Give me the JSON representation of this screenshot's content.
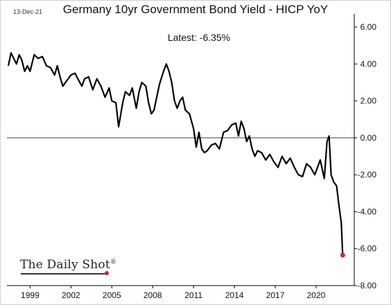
{
  "date_stamp": "13-Dec-21",
  "brand": {
    "name": "The Daily Shot",
    "mark": "®",
    "accent": "#e0232c"
  },
  "chart_data": {
    "type": "line",
    "title": "Germany 10yr Government Bond Yield - HICP YoY",
    "annotation": "Latest:  -6.35%",
    "xlabel": "",
    "ylabel": "",
    "xlim": [
      1997.3,
      2022.8
    ],
    "ylim": [
      -8,
      6
    ],
    "y_ticks": [
      6,
      4,
      2,
      0,
      -2,
      -4,
      -6,
      -8
    ],
    "y_tick_labels": [
      "6.00",
      "4.00",
      "2.00",
      "0.00",
      "-2.00",
      "-4.00",
      "-6.00",
      "-8.00"
    ],
    "x_ticks": [
      1999,
      2002,
      2005,
      2008,
      2011,
      2014,
      2017,
      2020
    ],
    "x_tick_labels": [
      "1999",
      "2002",
      "2005",
      "2008",
      "2011",
      "2014",
      "2017",
      "2020"
    ],
    "y_axis_side": "right",
    "zero_line": true,
    "grid": false,
    "line_color": "#000000",
    "endpoint_color": "#e0232c",
    "series": [
      {
        "x": [
          1997.4,
          1997.6,
          1997.8,
          1998.0,
          1998.2,
          1998.4,
          1998.6,
          1998.8,
          1999.0,
          1999.3,
          1999.6,
          1999.9,
          2000.2,
          2000.5,
          2000.8,
          2001.0,
          2001.2,
          2001.4,
          2001.7,
          2002.0,
          2002.3,
          2002.5,
          2002.8,
          2003.0,
          2003.3,
          2003.6,
          2003.9,
          2004.2,
          2004.5,
          2004.8,
          2005.0,
          2005.3,
          2005.5,
          2005.8,
          2006.0,
          2006.3,
          2006.5,
          2006.8,
          2007.0,
          2007.2,
          2007.5,
          2007.7,
          2007.9,
          2008.1,
          2008.3,
          2008.5,
          2008.8,
          2009.0,
          2009.2,
          2009.4,
          2009.6,
          2009.8,
          2010.0,
          2010.2,
          2010.4,
          2010.7,
          2011.0,
          2011.2,
          2011.4,
          2011.6,
          2011.8,
          2012.0,
          2012.3,
          2012.6,
          2012.9,
          2013.2,
          2013.5,
          2013.8,
          2014.1,
          2014.3,
          2014.5,
          2014.7,
          2014.9,
          2015.1,
          2015.3,
          2015.5,
          2015.7,
          2016.0,
          2016.3,
          2016.6,
          2016.9,
          2017.2,
          2017.5,
          2017.8,
          2018.1,
          2018.4,
          2018.7,
          2019.0,
          2019.3,
          2019.6,
          2019.9,
          2020.1,
          2020.3,
          2020.6,
          2020.8,
          2020.95,
          2021.1,
          2021.3,
          2021.5,
          2021.7,
          2021.85,
          2021.95
        ],
        "y": [
          3.9,
          4.6,
          4.3,
          4.0,
          4.5,
          4.2,
          3.6,
          3.9,
          3.6,
          4.5,
          4.3,
          4.4,
          3.9,
          3.8,
          3.4,
          3.9,
          3.3,
          2.8,
          3.1,
          3.4,
          3.5,
          3.2,
          2.8,
          3.2,
          3.3,
          2.6,
          3.2,
          2.8,
          2.2,
          2.7,
          2.0,
          1.9,
          0.6,
          1.9,
          2.5,
          2.3,
          2.7,
          1.6,
          2.5,
          3.0,
          2.8,
          1.9,
          1.3,
          1.5,
          2.2,
          2.9,
          3.6,
          4.0,
          3.6,
          3.0,
          2.0,
          1.6,
          2.0,
          2.2,
          1.5,
          1.3,
          0.5,
          -0.5,
          0.3,
          -0.6,
          -0.8,
          -0.7,
          -0.4,
          -0.3,
          -0.6,
          0.3,
          0.4,
          0.7,
          0.8,
          0.1,
          0.9,
          0.5,
          -0.2,
          0.1,
          -0.6,
          -1.0,
          -0.7,
          -0.8,
          -1.2,
          -0.9,
          -1.3,
          -1.6,
          -1.0,
          -1.4,
          -1.1,
          -1.6,
          -2.0,
          -2.1,
          -1.4,
          -1.6,
          -2.0,
          -1.6,
          -1.2,
          -2.2,
          -0.2,
          0.1,
          -2.0,
          -2.4,
          -2.6,
          -3.8,
          -4.6,
          -6.35
        ]
      }
    ],
    "latest_value": -6.35
  }
}
